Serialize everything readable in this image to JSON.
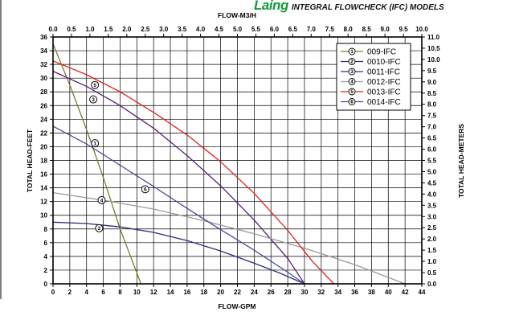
{
  "header": {
    "brand": "Laing",
    "subtitle": "INTEGRAL FLOWCHECK (IFC) MODELS"
  },
  "chart_data": {
    "type": "line",
    "title": "",
    "xlabel": "FLOW-GPM",
    "x2label": "FLOW-M3/H",
    "ylabel": "TOTAL HEAD-FEET",
    "y2label": "TOTAL HEAD-METERS",
    "xlim": [
      0,
      44
    ],
    "ylim": [
      0,
      36
    ],
    "x2lim": [
      0,
      10
    ],
    "y2lim": [
      0,
      11
    ],
    "grid": true,
    "legend_position": "top-right",
    "x_ticks": [
      "0",
      "2",
      "4",
      "6",
      "8",
      "10",
      "12",
      "14",
      "16",
      "18",
      "20",
      "22",
      "24",
      "26",
      "28",
      "30",
      "32",
      "34",
      "36",
      "38",
      "40",
      "42",
      "44"
    ],
    "y_ticks": [
      "0",
      "2",
      "4",
      "6",
      "8",
      "10",
      "12",
      "14",
      "16",
      "18",
      "20",
      "22",
      "24",
      "26",
      "28",
      "30",
      "32",
      "34",
      "36"
    ],
    "x2_ticks": [
      "0.0",
      "0.5",
      "1.0",
      "1.5",
      "2.0",
      "2.5",
      "3.0",
      "3.5",
      "4.0",
      "4.5",
      "5.0",
      "5.5",
      "6.0",
      "6.5",
      "7.0",
      "7.5",
      "8.0",
      "8.5",
      "9.0",
      "9.5",
      "10.0"
    ],
    "y2_ticks": [
      "0.0",
      "0.5",
      "1.0",
      "1.5",
      "2.0",
      "2.5",
      "3.0",
      "3.5",
      "4.0",
      "4.5",
      "5.0",
      "5.5",
      "6.0",
      "6.5",
      "7.0",
      "7.5",
      "8.0",
      "8.5",
      "9.0",
      "9.5",
      "10.0",
      "10.5",
      "11.0"
    ],
    "series": [
      {
        "name": "009-IFC",
        "marker": "1",
        "color": "#7c7a2a",
        "x": [
          0,
          2,
          4,
          6,
          8,
          10.5
        ],
        "y": [
          35,
          29,
          22.5,
          15.5,
          8,
          0
        ],
        "marker_at": [
          5,
          20.5
        ]
      },
      {
        "name": "0010-IFC",
        "marker": "2",
        "color": "#2d2e78",
        "x": [
          0,
          4,
          8,
          12,
          16,
          20,
          24,
          27,
          30
        ],
        "y": [
          9,
          8.8,
          8.3,
          7.5,
          6.3,
          4.8,
          3,
          1.6,
          0
        ],
        "marker_at": [
          5.5,
          8.1
        ]
      },
      {
        "name": "0011-IFC",
        "marker": "3",
        "color": "#5a1e7a",
        "x": [
          0,
          4,
          8,
          12,
          16,
          20,
          24,
          28,
          30
        ],
        "y": [
          31,
          28.8,
          26,
          22.7,
          18.7,
          14.3,
          9.3,
          3.7,
          0
        ],
        "marker_at": [
          4.8,
          26.9
        ]
      },
      {
        "name": "0012-IFC",
        "marker": "4",
        "color": "#9a9a9a",
        "x": [
          0,
          6,
          12,
          18,
          24,
          30,
          36,
          42
        ],
        "y": [
          13.3,
          12.2,
          10.9,
          9.2,
          7.3,
          5.2,
          2.8,
          0
        ],
        "marker_at": [
          5.8,
          12.2
        ]
      },
      {
        "name": "0013-IFC",
        "marker": "5",
        "color": "#e02020",
        "x": [
          0,
          4,
          8,
          12,
          16,
          20,
          24,
          28,
          31,
          33.5
        ],
        "y": [
          32.5,
          30.5,
          28,
          25,
          21.7,
          17.8,
          13.2,
          7.8,
          3.2,
          0
        ],
        "marker_at": [
          5,
          29
        ]
      },
      {
        "name": "0014-IFC",
        "marker": "6",
        "color": "#4a4a9a",
        "x": [
          0,
          4,
          8,
          12,
          16,
          20,
          24,
          28,
          30
        ],
        "y": [
          23,
          20.4,
          17.3,
          14.2,
          11,
          7.9,
          4.9,
          1.7,
          0
        ],
        "marker_at": [
          11,
          13.8
        ]
      }
    ]
  }
}
